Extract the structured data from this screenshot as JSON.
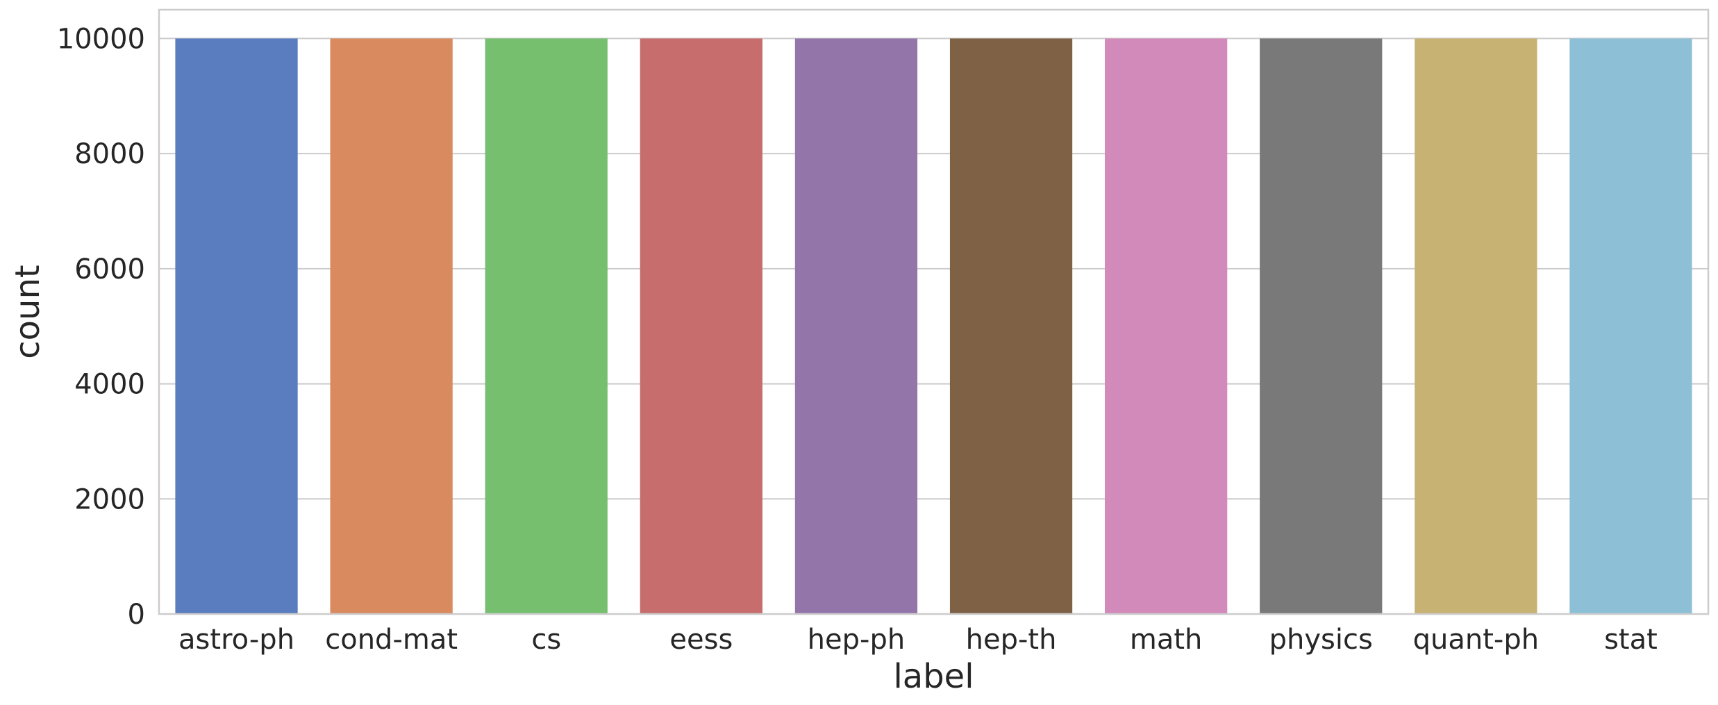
{
  "chart_data": {
    "type": "bar",
    "title": "",
    "xlabel": "label",
    "ylabel": "count",
    "categories": [
      "astro-ph",
      "cond-mat",
      "cs",
      "eess",
      "hep-ph",
      "hep-th",
      "math",
      "physics",
      "quant-ph",
      "stat"
    ],
    "values": [
      10000,
      10000,
      10000,
      10000,
      10000,
      10000,
      10000,
      10000,
      10000,
      10000
    ],
    "colors": [
      "#5a7dbf",
      "#d98a5e",
      "#76bf6f",
      "#c76d6d",
      "#9375aa",
      "#7f6246",
      "#d28abb",
      "#797979",
      "#c7b173",
      "#8dc0d6"
    ],
    "ylim": [
      0,
      10500
    ],
    "yticks": [
      "0",
      "2000",
      "4000",
      "6000",
      "8000",
      "10000"
    ],
    "ytick_values": [
      0,
      2000,
      4000,
      6000,
      8000,
      10000
    ],
    "grid": true,
    "legend": "none"
  }
}
